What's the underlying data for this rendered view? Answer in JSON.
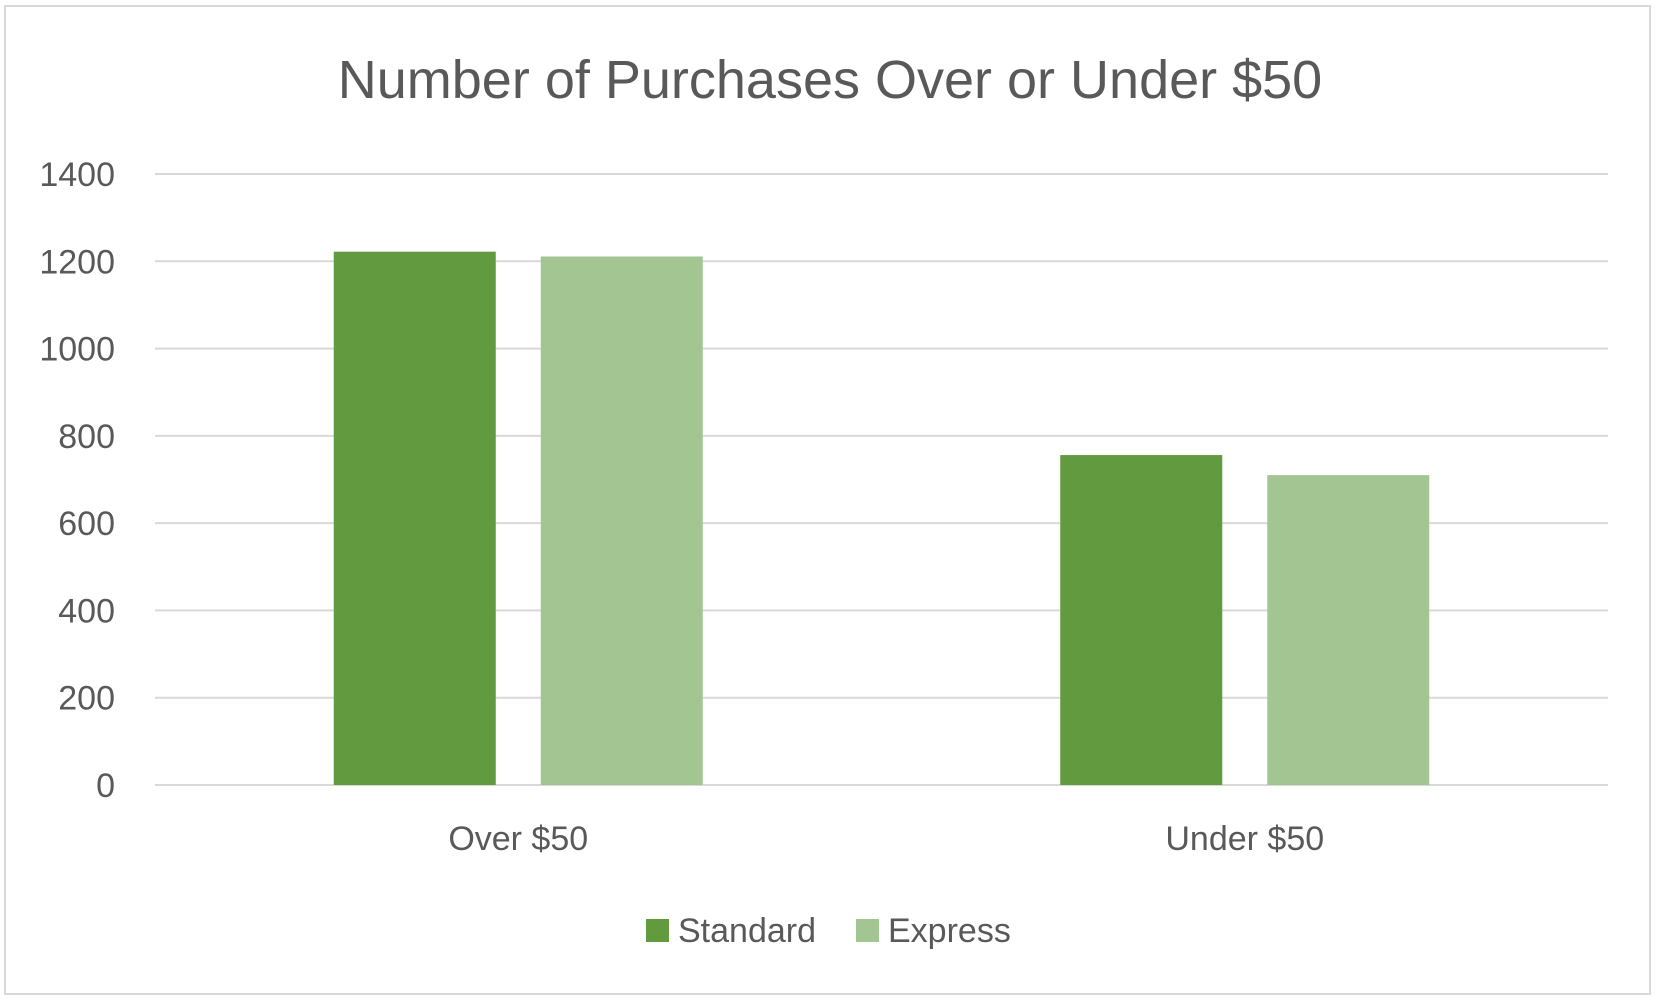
{
  "chart_data": {
    "type": "bar",
    "title": "Number of Purchases Over or Under $50",
    "categories": [
      "Over $50",
      "Under $50"
    ],
    "series": [
      {
        "name": "Standard",
        "values": [
          1222,
          756
        ],
        "color": "#629a3f"
      },
      {
        "name": "Express",
        "values": [
          1211,
          710
        ],
        "color": "#a3c591"
      }
    ],
    "ylim": [
      0,
      1400
    ],
    "yticks": [
      0,
      200,
      400,
      600,
      800,
      1000,
      1200,
      1400
    ],
    "grid": true,
    "legend_position": "bottom"
  }
}
